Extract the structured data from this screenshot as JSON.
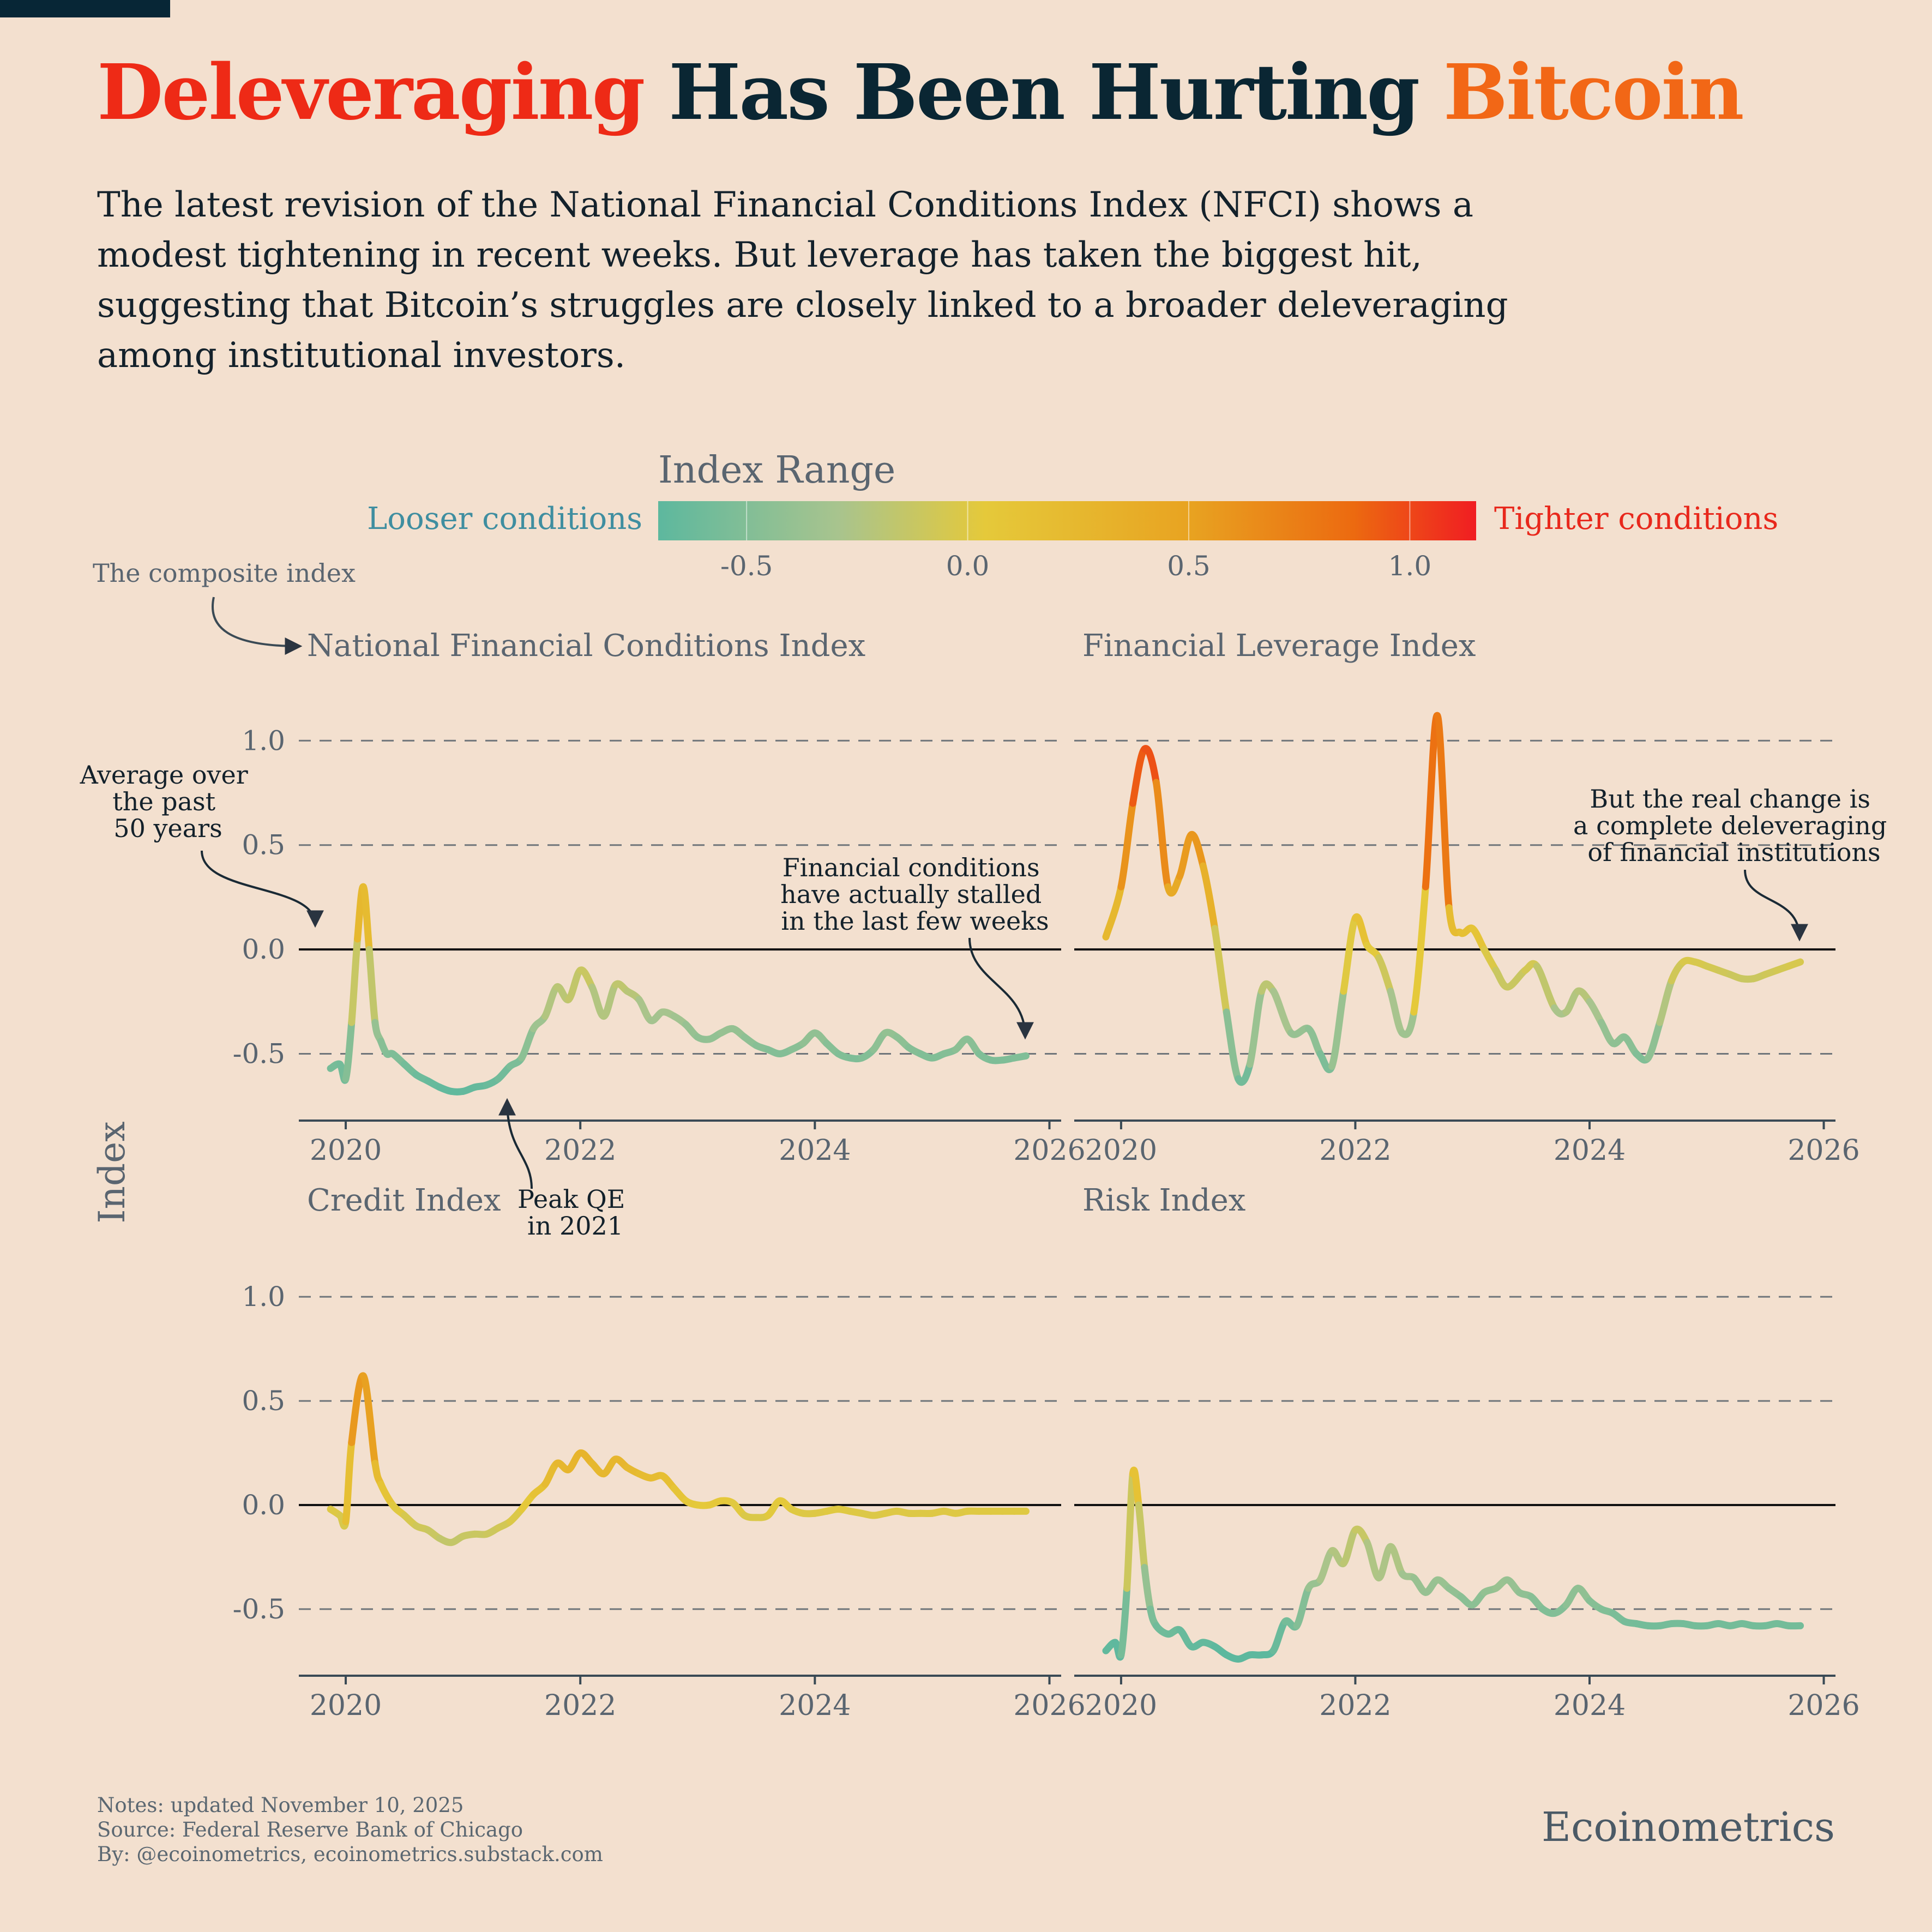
{
  "title": {
    "part1": "Deleveraging",
    "part2": "Has Been Hurting",
    "part3": "Bitcoin"
  },
  "subtitle": "The latest revision of the National Financial Conditions Index (NFCI) shows a modest tightening in recent weeks. But leverage has taken the biggest hit, suggesting that Bitcoin’s struggles are closely linked to a broader deleveraging among institutional investors.",
  "legend": {
    "title": "Index Range",
    "left_label": "Looser conditions",
    "right_label": "Tighter conditions",
    "ticks": [
      "-0.5",
      "0.0",
      "0.5",
      "1.0"
    ],
    "tick_values": [
      -0.5,
      0.0,
      0.5,
      1.0
    ],
    "range": [
      -0.7,
      1.15
    ],
    "colors": [
      "#5db89e",
      "#a8c48e",
      "#e5c93a",
      "#e8a321",
      "#ec6a10",
      "#f01d22"
    ]
  },
  "y_axis_label": "Index",
  "annotations": {
    "composite": "The composite index",
    "average": [
      "Average over",
      "the past",
      "50 years"
    ],
    "stalled": [
      "Financial conditions",
      "have actually stalled",
      "in the last few weeks"
    ],
    "peak_qe": [
      "Peak QE",
      "in 2021"
    ],
    "deleveraging": [
      "But the real change is",
      "a complete deleveraging",
      "of financial institutions"
    ]
  },
  "chart_data": [
    {
      "type": "line",
      "title": "National Financial Conditions Index",
      "xlabel": "",
      "ylabel": "Index",
      "xlim": [
        2019.6,
        2026.1
      ],
      "ylim": [
        -0.82,
        1.1
      ],
      "xticks": [
        "2020",
        "2022",
        "2024",
        "2026"
      ],
      "xtick_values": [
        2020,
        2022,
        2024,
        2026
      ],
      "yticks": [
        "1.0",
        "0.5",
        "0.0",
        "-0.5"
      ],
      "ytick_values": [
        1.0,
        0.5,
        0.0,
        -0.5
      ],
      "reference_line": 0.0,
      "grid": "dashed horizontal",
      "x": [
        2019.87,
        2019.95,
        2020.0,
        2020.05,
        2020.1,
        2020.15,
        2020.2,
        2020.25,
        2020.3,
        2020.35,
        2020.4,
        2020.5,
        2020.6,
        2020.7,
        2020.8,
        2020.9,
        2021.0,
        2021.1,
        2021.2,
        2021.3,
        2021.4,
        2021.5,
        2021.6,
        2021.7,
        2021.8,
        2021.9,
        2022.0,
        2022.1,
        2022.2,
        2022.3,
        2022.4,
        2022.5,
        2022.6,
        2022.7,
        2022.8,
        2022.9,
        2023.0,
        2023.1,
        2023.2,
        2023.3,
        2023.4,
        2023.5,
        2023.6,
        2023.7,
        2023.8,
        2023.9,
        2024.0,
        2024.1,
        2024.2,
        2024.3,
        2024.4,
        2024.5,
        2024.6,
        2024.7,
        2024.8,
        2024.9,
        2025.0,
        2025.1,
        2025.2,
        2025.3,
        2025.4,
        2025.5,
        2025.6,
        2025.7,
        2025.8
      ],
      "values": [
        -0.57,
        -0.55,
        -0.62,
        -0.35,
        0.05,
        0.3,
        0.0,
        -0.35,
        -0.44,
        -0.5,
        -0.5,
        -0.55,
        -0.6,
        -0.63,
        -0.66,
        -0.68,
        -0.68,
        -0.66,
        -0.65,
        -0.62,
        -0.56,
        -0.52,
        -0.38,
        -0.32,
        -0.18,
        -0.24,
        -0.1,
        -0.18,
        -0.32,
        -0.17,
        -0.2,
        -0.24,
        -0.34,
        -0.3,
        -0.32,
        -0.36,
        -0.42,
        -0.43,
        -0.4,
        -0.38,
        -0.42,
        -0.46,
        -0.48,
        -0.5,
        -0.48,
        -0.45,
        -0.4,
        -0.45,
        -0.5,
        -0.52,
        -0.52,
        -0.48,
        -0.4,
        -0.42,
        -0.47,
        -0.5,
        -0.52,
        -0.5,
        -0.48,
        -0.43,
        -0.5,
        -0.53,
        -0.53,
        -0.52,
        -0.51
      ]
    },
    {
      "type": "line",
      "title": "Financial Leverage Index",
      "xlabel": "",
      "ylabel": "Index",
      "xlim": [
        2019.6,
        2026.1
      ],
      "ylim": [
        -0.82,
        1.1
      ],
      "xticks": [
        "2020",
        "2022",
        "2024",
        "2026"
      ],
      "xtick_values": [
        2020,
        2022,
        2024,
        2026
      ],
      "yticks": [
        "1.0",
        "0.5",
        "0.0",
        "-0.5"
      ],
      "ytick_values": [
        1.0,
        0.5,
        0.0,
        -0.5
      ],
      "reference_line": 0.0,
      "grid": "dashed horizontal",
      "x": [
        2019.87,
        2020.0,
        2020.1,
        2020.2,
        2020.3,
        2020.4,
        2020.5,
        2020.6,
        2020.7,
        2020.8,
        2020.9,
        2021.0,
        2021.1,
        2021.2,
        2021.3,
        2021.45,
        2021.6,
        2021.7,
        2021.8,
        2021.9,
        2022.0,
        2022.1,
        2022.2,
        2022.3,
        2022.4,
        2022.5,
        2022.6,
        2022.7,
        2022.8,
        2022.9,
        2023.0,
        2023.1,
        2023.2,
        2023.3,
        2023.45,
        2023.55,
        2023.7,
        2023.8,
        2023.9,
        2024.0,
        2024.1,
        2024.2,
        2024.3,
        2024.4,
        2024.5,
        2024.6,
        2024.7,
        2024.8,
        2024.9,
        2025.0,
        2025.1,
        2025.2,
        2025.3,
        2025.4,
        2025.5,
        2025.6,
        2025.7,
        2025.8
      ],
      "values": [
        0.06,
        0.3,
        0.7,
        0.96,
        0.8,
        0.3,
        0.35,
        0.55,
        0.4,
        0.1,
        -0.3,
        -0.62,
        -0.55,
        -0.2,
        -0.2,
        -0.4,
        -0.38,
        -0.5,
        -0.56,
        -0.2,
        0.15,
        0.02,
        -0.04,
        -0.2,
        -0.4,
        -0.3,
        0.3,
        1.12,
        0.2,
        0.08,
        0.1,
        0.0,
        -0.1,
        -0.18,
        -0.1,
        -0.08,
        -0.28,
        -0.3,
        -0.2,
        -0.25,
        -0.35,
        -0.45,
        -0.42,
        -0.5,
        -0.52,
        -0.35,
        -0.15,
        -0.06,
        -0.06,
        -0.08,
        -0.1,
        -0.12,
        -0.14,
        -0.14,
        -0.12,
        -0.1,
        -0.08,
        -0.06
      ]
    },
    {
      "type": "line",
      "title": "Credit Index",
      "xlabel": "",
      "ylabel": "Index",
      "xlim": [
        2019.6,
        2026.1
      ],
      "ylim": [
        -0.82,
        1.1
      ],
      "xticks": [
        "2020",
        "2022",
        "2024",
        "2026"
      ],
      "xtick_values": [
        2020,
        2022,
        2024,
        2026
      ],
      "yticks": [
        "1.0",
        "0.5",
        "0.0",
        "-0.5"
      ],
      "ytick_values": [
        1.0,
        0.5,
        0.0,
        -0.5
      ],
      "reference_line": 0.0,
      "grid": "dashed horizontal",
      "x": [
        2019.87,
        2019.95,
        2020.0,
        2020.05,
        2020.15,
        2020.25,
        2020.3,
        2020.4,
        2020.5,
        2020.6,
        2020.7,
        2020.8,
        2020.9,
        2021.0,
        2021.1,
        2021.2,
        2021.3,
        2021.4,
        2021.5,
        2021.6,
        2021.7,
        2021.8,
        2021.9,
        2022.0,
        2022.1,
        2022.2,
        2022.3,
        2022.4,
        2022.5,
        2022.6,
        2022.7,
        2022.8,
        2022.9,
        2023.0,
        2023.1,
        2023.2,
        2023.3,
        2023.4,
        2023.5,
        2023.6,
        2023.7,
        2023.8,
        2023.9,
        2024.0,
        2024.1,
        2024.2,
        2024.3,
        2024.4,
        2024.5,
        2024.6,
        2024.7,
        2024.8,
        2024.9,
        2025.0,
        2025.1,
        2025.2,
        2025.3,
        2025.4,
        2025.5,
        2025.6,
        2025.7,
        2025.8
      ],
      "values": [
        -0.02,
        -0.05,
        -0.08,
        0.3,
        0.62,
        0.2,
        0.1,
        0.0,
        -0.05,
        -0.1,
        -0.12,
        -0.16,
        -0.18,
        -0.15,
        -0.14,
        -0.14,
        -0.11,
        -0.08,
        -0.02,
        0.05,
        0.1,
        0.2,
        0.17,
        0.25,
        0.2,
        0.15,
        0.22,
        0.18,
        0.15,
        0.13,
        0.14,
        0.08,
        0.02,
        0.0,
        0.0,
        0.02,
        0.01,
        -0.05,
        -0.06,
        -0.05,
        0.02,
        -0.02,
        -0.04,
        -0.04,
        -0.03,
        -0.02,
        -0.03,
        -0.04,
        -0.05,
        -0.04,
        -0.03,
        -0.04,
        -0.04,
        -0.04,
        -0.03,
        -0.04,
        -0.03,
        -0.03,
        -0.03,
        -0.03,
        -0.03,
        -0.03
      ]
    },
    {
      "type": "line",
      "title": "Risk Index",
      "xlabel": "",
      "ylabel": "Index",
      "xlim": [
        2019.6,
        2026.1
      ],
      "ylim": [
        -0.82,
        1.1
      ],
      "xticks": [
        "2020",
        "2022",
        "2024",
        "2026"
      ],
      "xtick_values": [
        2020,
        2022,
        2024,
        2026
      ],
      "yticks": [
        "1.0",
        "0.5",
        "0.0",
        "-0.5"
      ],
      "ytick_values": [
        1.0,
        0.5,
        0.0,
        -0.5
      ],
      "reference_line": 0.0,
      "grid": "dashed horizontal",
      "x": [
        2019.87,
        2019.95,
        2020.0,
        2020.05,
        2020.1,
        2020.15,
        2020.2,
        2020.25,
        2020.3,
        2020.4,
        2020.5,
        2020.6,
        2020.7,
        2020.8,
        2020.9,
        2021.0,
        2021.1,
        2021.2,
        2021.3,
        2021.4,
        2021.5,
        2021.6,
        2021.7,
        2021.8,
        2021.9,
        2022.0,
        2022.1,
        2022.2,
        2022.3,
        2022.4,
        2022.5,
        2022.6,
        2022.7,
        2022.8,
        2022.9,
        2023.0,
        2023.1,
        2023.2,
        2023.3,
        2023.4,
        2023.5,
        2023.6,
        2023.7,
        2023.8,
        2023.9,
        2024.0,
        2024.1,
        2024.2,
        2024.3,
        2024.4,
        2024.5,
        2024.6,
        2024.7,
        2024.8,
        2024.9,
        2025.0,
        2025.1,
        2025.2,
        2025.3,
        2025.4,
        2025.5,
        2025.6,
        2025.7,
        2025.8
      ],
      "values": [
        -0.7,
        -0.66,
        -0.72,
        -0.4,
        0.15,
        0.0,
        -0.3,
        -0.5,
        -0.58,
        -0.62,
        -0.6,
        -0.68,
        -0.66,
        -0.68,
        -0.72,
        -0.74,
        -0.72,
        -0.72,
        -0.7,
        -0.56,
        -0.58,
        -0.4,
        -0.36,
        -0.22,
        -0.28,
        -0.12,
        -0.18,
        -0.35,
        -0.2,
        -0.33,
        -0.35,
        -0.42,
        -0.36,
        -0.4,
        -0.44,
        -0.48,
        -0.42,
        -0.4,
        -0.36,
        -0.42,
        -0.44,
        -0.5,
        -0.52,
        -0.48,
        -0.4,
        -0.46,
        -0.5,
        -0.52,
        -0.56,
        -0.57,
        -0.58,
        -0.58,
        -0.57,
        -0.57,
        -0.58,
        -0.58,
        -0.57,
        -0.58,
        -0.57,
        -0.58,
        -0.58,
        -0.57,
        -0.58,
        -0.58
      ]
    }
  ],
  "footer": {
    "notes": "Notes: updated November 10, 2025",
    "source": "Source: Federal Reserve Bank of Chicago",
    "by": "By: @ecoinometrics, ecoinometrics.substack.com",
    "brand": "Ecoinometrics"
  }
}
